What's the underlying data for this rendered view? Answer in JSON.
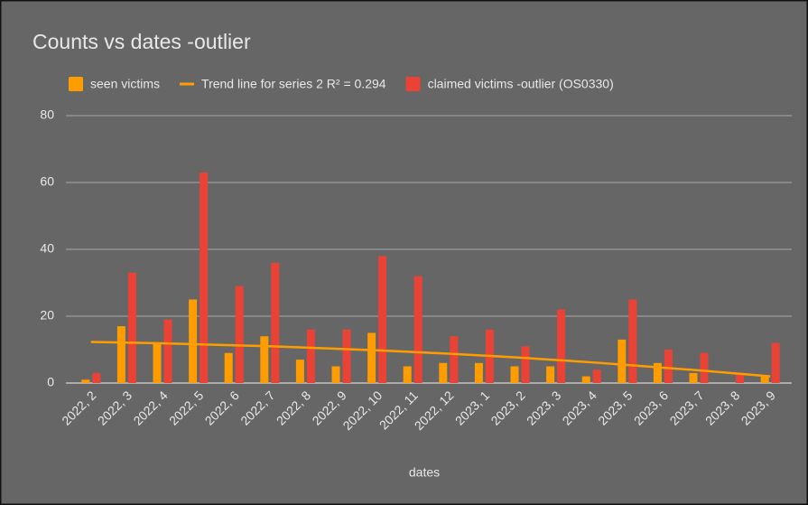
{
  "chart_data": {
    "type": "bar",
    "title": "Counts vs dates -outlier",
    "x_label": "dates",
    "categories": [
      "2022, 2",
      "2022, 3",
      "2022, 4",
      "2022, 5",
      "2022, 6",
      "2022, 7",
      "2022, 8",
      "2022, 9",
      "2022, 10",
      "2022, 11",
      "2022, 12",
      "2023, 1",
      "2023, 2",
      "2023, 3",
      "2023, 4",
      "2023, 5",
      "2023, 6",
      "2023, 7",
      "2023, 8",
      "2023, 9"
    ],
    "series": [
      {
        "name": "seen victims",
        "color": "#ff9c00",
        "type": "bar",
        "values": [
          1,
          17,
          12,
          25,
          9,
          14,
          7,
          5,
          15,
          5,
          6,
          6,
          5,
          5,
          2,
          13,
          6,
          3,
          0,
          2
        ]
      },
      {
        "name": "Trend line for series 2 R² = 0.294",
        "color": "#ff9c00",
        "type": "line",
        "values": [
          12.3,
          12.1,
          11.9,
          11.6,
          11.3,
          11.0,
          10.6,
          10.2,
          9.8,
          9.3,
          8.8,
          8.2,
          7.6,
          6.9,
          6.2,
          5.4,
          4.6,
          3.8,
          2.9,
          2.0
        ]
      },
      {
        "name": "claimed victims -outlier (OS0330)",
        "color": "#ea4335",
        "type": "bar",
        "values": [
          3,
          33,
          19,
          63,
          29,
          36,
          16,
          16,
          38,
          32,
          14,
          16,
          11,
          22,
          4,
          25,
          10,
          9,
          3,
          12
        ]
      }
    ],
    "ylim": [
      0,
      80
    ],
    "yticks": [
      0,
      20,
      40,
      60,
      80
    ],
    "grid": true,
    "legend": "top"
  }
}
